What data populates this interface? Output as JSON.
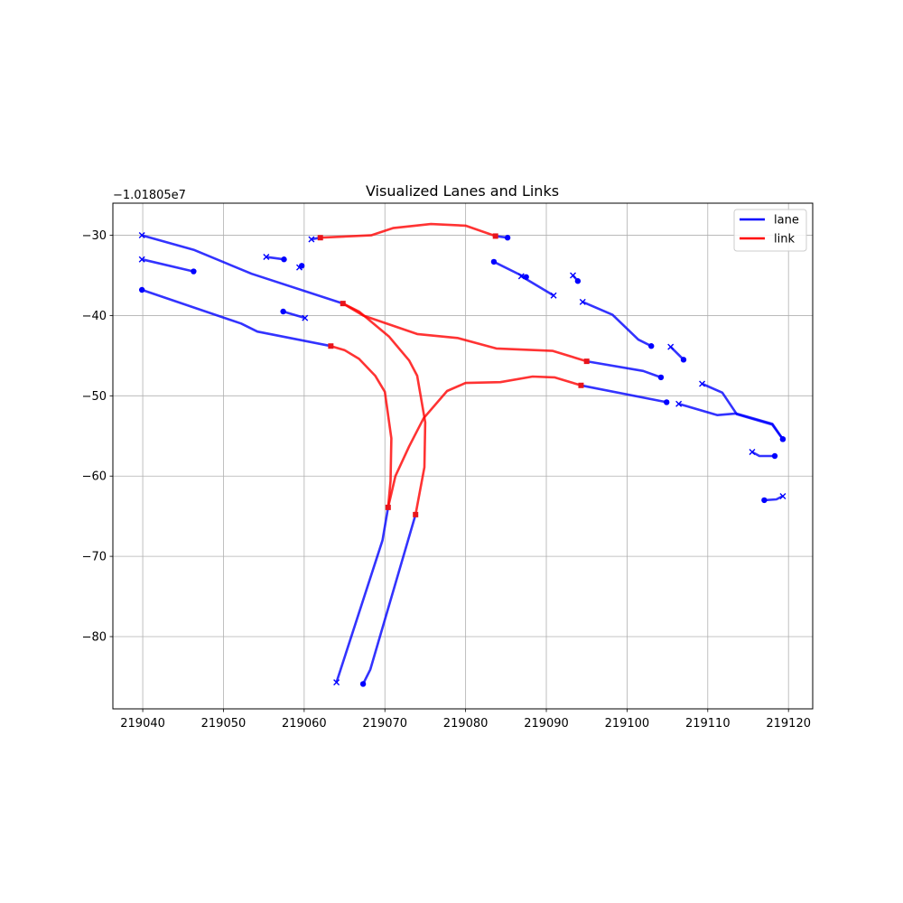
{
  "chart_data": {
    "type": "line",
    "title": "Visualized Lanes and Links",
    "xlabel": "",
    "ylabel": "",
    "y_offset_label": "−1.01805e7",
    "xlim": [
      219036.3,
      219123.0
    ],
    "ylim": [
      -89.0,
      -26.0
    ],
    "x_ticks": [
      219040,
      219050,
      219060,
      219070,
      219080,
      219090,
      219100,
      219110,
      219120
    ],
    "x_tick_labels": [
      "219040",
      "219050",
      "219060",
      "219070",
      "219080",
      "219090",
      "219100",
      "219110",
      "219120"
    ],
    "y_ticks": [
      -30,
      -40,
      -50,
      -60,
      -70,
      -80
    ],
    "y_tick_labels": [
      "−30",
      "−40",
      "−50",
      "−60",
      "−70",
      "−80"
    ],
    "grid": true,
    "legend_position": "top-right",
    "legend": [
      {
        "label": "lane",
        "color": "#0000ff"
      },
      {
        "label": "link",
        "color": "#ff0000"
      }
    ],
    "colors": {
      "lane": "#0000ff",
      "link": "#ff0000"
    },
    "lanes": [
      {
        "points": [
          [
            219039.9,
            -30.0
          ],
          [
            219046.3,
            -31.8
          ],
          [
            219053.5,
            -34.8
          ],
          [
            219064.8,
            -38.5
          ]
        ],
        "start": "x",
        "end": "s"
      },
      {
        "points": [
          [
            219039.9,
            -33.0
          ],
          [
            219046.3,
            -34.5
          ]
        ],
        "start": "x",
        "end": "o"
      },
      {
        "points": [
          [
            219039.9,
            -36.8
          ],
          [
            219052.2,
            -41.0
          ],
          [
            219054.2,
            -42.0
          ],
          [
            219063.3,
            -43.8
          ]
        ],
        "start": "o",
        "end": "s"
      },
      {
        "points": [
          [
            219055.3,
            -32.7
          ],
          [
            219057.5,
            -33.0
          ]
        ],
        "start": "x",
        "end": "o"
      },
      {
        "points": [
          [
            219059.4,
            -34.0
          ],
          [
            219059.7,
            -33.8
          ]
        ],
        "start": "x",
        "end": "o"
      },
      {
        "points": [
          [
            219057.4,
            -39.5
          ],
          [
            219060.1,
            -40.3
          ]
        ],
        "start": "o",
        "end": "x"
      },
      {
        "points": [
          [
            219060.9,
            -30.5
          ],
          [
            219062.0,
            -30.3
          ]
        ],
        "start": "x",
        "end": "s"
      },
      {
        "points": [
          [
            219083.7,
            -30.1
          ],
          [
            219085.2,
            -30.3
          ]
        ],
        "start": "s",
        "end": "o"
      },
      {
        "points": [
          [
            219083.5,
            -33.3
          ],
          [
            219086.9,
            -35.0
          ],
          [
            219087.5,
            -35.2
          ]
        ],
        "start": "o",
        "end": "o"
      },
      {
        "points": [
          [
            219086.9,
            -35.1
          ],
          [
            219090.9,
            -37.5
          ]
        ],
        "start": "x",
        "end": "x"
      },
      {
        "points": [
          [
            219093.3,
            -35.0
          ],
          [
            219093.9,
            -35.7
          ]
        ],
        "start": "x",
        "end": "o"
      },
      {
        "points": [
          [
            219094.5,
            -38.3
          ],
          [
            219098.2,
            -39.9
          ],
          [
            219101.4,
            -43.0
          ],
          [
            219103.0,
            -43.8
          ]
        ],
        "start": "x",
        "end": "o"
      },
      {
        "points": [
          [
            219095.0,
            -45.7
          ],
          [
            219102.0,
            -46.9
          ],
          [
            219104.2,
            -47.7
          ]
        ],
        "start": "s",
        "end": "o"
      },
      {
        "points": [
          [
            219094.3,
            -48.7
          ],
          [
            219104.9,
            -50.8
          ]
        ],
        "start": "s",
        "end": "o"
      },
      {
        "points": [
          [
            219105.4,
            -43.9
          ],
          [
            219107.0,
            -45.5
          ]
        ],
        "start": "x",
        "end": "o"
      },
      {
        "points": [
          [
            219106.4,
            -51.0
          ],
          [
            219111.2,
            -52.4
          ],
          [
            219113.5,
            -52.2
          ],
          [
            219118.0,
            -53.5
          ],
          [
            219119.3,
            -55.4
          ]
        ],
        "start": "x",
        "end": "o"
      },
      {
        "points": [
          [
            219109.3,
            -48.5
          ],
          [
            219111.8,
            -49.6
          ],
          [
            219113.6,
            -52.3
          ],
          [
            219118.0,
            -53.6
          ],
          [
            219119.3,
            -55.4
          ]
        ],
        "start": "x",
        "end": "o"
      },
      {
        "points": [
          [
            219115.5,
            -57.0
          ],
          [
            219116.4,
            -57.5
          ],
          [
            219118.3,
            -57.5
          ]
        ],
        "start": "x",
        "end": "o"
      },
      {
        "points": [
          [
            219117.0,
            -63.0
          ],
          [
            219118.5,
            -62.9
          ],
          [
            219119.3,
            -62.5
          ]
        ],
        "start": "o",
        "end": "x"
      },
      {
        "points": [
          [
            219064.0,
            -85.7
          ],
          [
            219069.7,
            -68.0
          ],
          [
            219070.4,
            -63.9
          ]
        ],
        "start": "x",
        "end": "s"
      },
      {
        "points": [
          [
            219067.3,
            -85.9
          ],
          [
            219068.2,
            -84.1
          ],
          [
            219073.8,
            -64.8
          ]
        ],
        "start": "o",
        "end": "s"
      }
    ],
    "links": [
      {
        "points": [
          [
            219062.0,
            -30.3
          ],
          [
            219068.3,
            -30.0
          ],
          [
            219071.0,
            -29.1
          ],
          [
            219075.7,
            -28.6
          ],
          [
            219080.0,
            -28.8
          ],
          [
            219083.7,
            -30.1
          ]
        ]
      },
      {
        "points": [
          [
            219064.8,
            -38.5
          ],
          [
            219066.8,
            -39.5
          ],
          [
            219070.5,
            -42.6
          ],
          [
            219073.0,
            -45.6
          ],
          [
            219074.0,
            -47.5
          ],
          [
            219075.0,
            -53.3
          ],
          [
            219074.9,
            -58.9
          ],
          [
            219073.8,
            -64.8
          ]
        ]
      },
      {
        "points": [
          [
            219064.8,
            -38.5
          ],
          [
            219067.3,
            -40.0
          ],
          [
            219074.0,
            -42.3
          ],
          [
            219079.0,
            -42.8
          ],
          [
            219083.8,
            -44.1
          ],
          [
            219090.8,
            -44.4
          ],
          [
            219095.0,
            -45.7
          ]
        ]
      },
      {
        "points": [
          [
            219063.3,
            -43.8
          ],
          [
            219065.0,
            -44.3
          ],
          [
            219066.8,
            -45.4
          ],
          [
            219068.8,
            -47.5
          ],
          [
            219070.0,
            -49.5
          ],
          [
            219070.8,
            -55.3
          ],
          [
            219070.7,
            -60.6
          ],
          [
            219070.4,
            -63.9
          ]
        ]
      },
      {
        "points": [
          [
            219070.4,
            -63.9
          ],
          [
            219071.3,
            -60.0
          ],
          [
            219073.0,
            -56.3
          ],
          [
            219074.8,
            -52.8
          ],
          [
            219077.7,
            -49.4
          ],
          [
            219080.0,
            -48.4
          ],
          [
            219084.3,
            -48.3
          ],
          [
            219088.3,
            -47.6
          ],
          [
            219091.0,
            -47.7
          ],
          [
            219094.3,
            -48.7
          ]
        ]
      }
    ]
  }
}
